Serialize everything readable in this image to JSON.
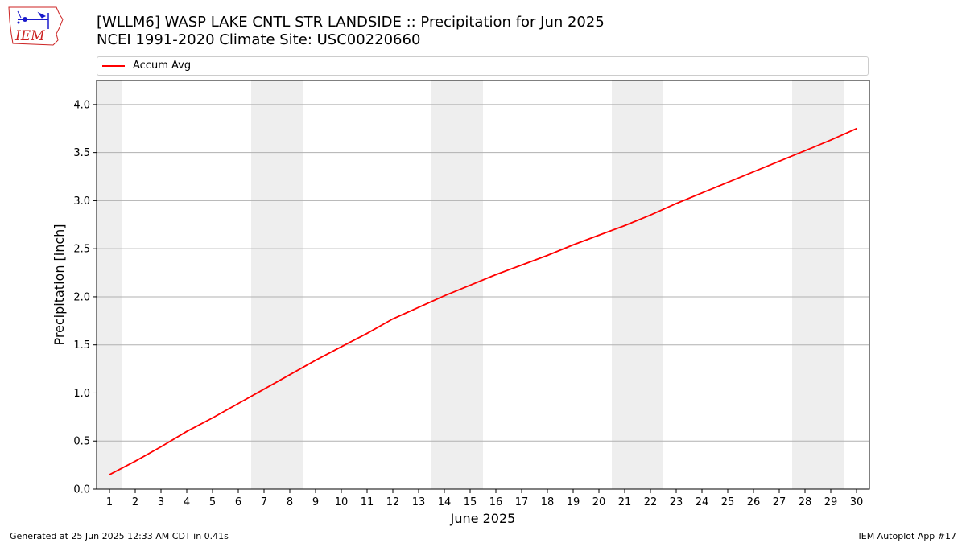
{
  "title_line1": "[WLLM6] WASP LAKE CNTL STR LANDSIDE :: Precipitation for Jun 2025",
  "title_line2": "NCEI 1991-2020 Climate Site: USC00220660",
  "logo_text": "IEM",
  "footer_left": "Generated at 25 Jun 2025 12:33 AM CDT in 0.41s",
  "footer_right": "IEM Autoplot App #17",
  "colors": {
    "line": "#ff0000",
    "weekend": "#eeeeee",
    "grid": "#b0b0b0",
    "logo": "#cc2222",
    "logo_icon": "#1a1acc"
  },
  "chart_data": {
    "type": "line",
    "xlabel": "June 2025",
    "ylabel": "Precipitation [inch]",
    "xlim": [
      0.5,
      30.5
    ],
    "ylim": [
      0,
      4.25
    ],
    "x_ticks": [
      1,
      2,
      3,
      4,
      5,
      6,
      7,
      8,
      9,
      10,
      11,
      12,
      13,
      14,
      15,
      16,
      17,
      18,
      19,
      20,
      21,
      22,
      23,
      24,
      25,
      26,
      27,
      28,
      29,
      30
    ],
    "y_ticks": [
      "0.0",
      "0.5",
      "1.0",
      "1.5",
      "2.0",
      "2.5",
      "3.0",
      "3.5",
      "4.0"
    ],
    "grid": "horizontal",
    "legend": "top",
    "shaded_ranges": [
      [
        0.5,
        1.5
      ],
      [
        6.5,
        8.5
      ],
      [
        13.5,
        15.5
      ],
      [
        20.5,
        22.5
      ],
      [
        27.5,
        29.5
      ]
    ],
    "series": [
      {
        "name": "Accum Avg",
        "x": [
          1,
          2,
          3,
          4,
          5,
          6,
          7,
          8,
          9,
          10,
          11,
          12,
          13,
          14,
          15,
          16,
          17,
          18,
          19,
          20,
          21,
          22,
          23,
          24,
          25,
          26,
          27,
          28,
          29,
          30
        ],
        "values": [
          0.15,
          0.29,
          0.44,
          0.6,
          0.74,
          0.89,
          1.04,
          1.19,
          1.34,
          1.48,
          1.62,
          1.77,
          1.89,
          2.01,
          2.12,
          2.23,
          2.33,
          2.43,
          2.54,
          2.64,
          2.74,
          2.85,
          2.97,
          3.08,
          3.19,
          3.3,
          3.41,
          3.52,
          3.63,
          3.75
        ]
      }
    ]
  }
}
